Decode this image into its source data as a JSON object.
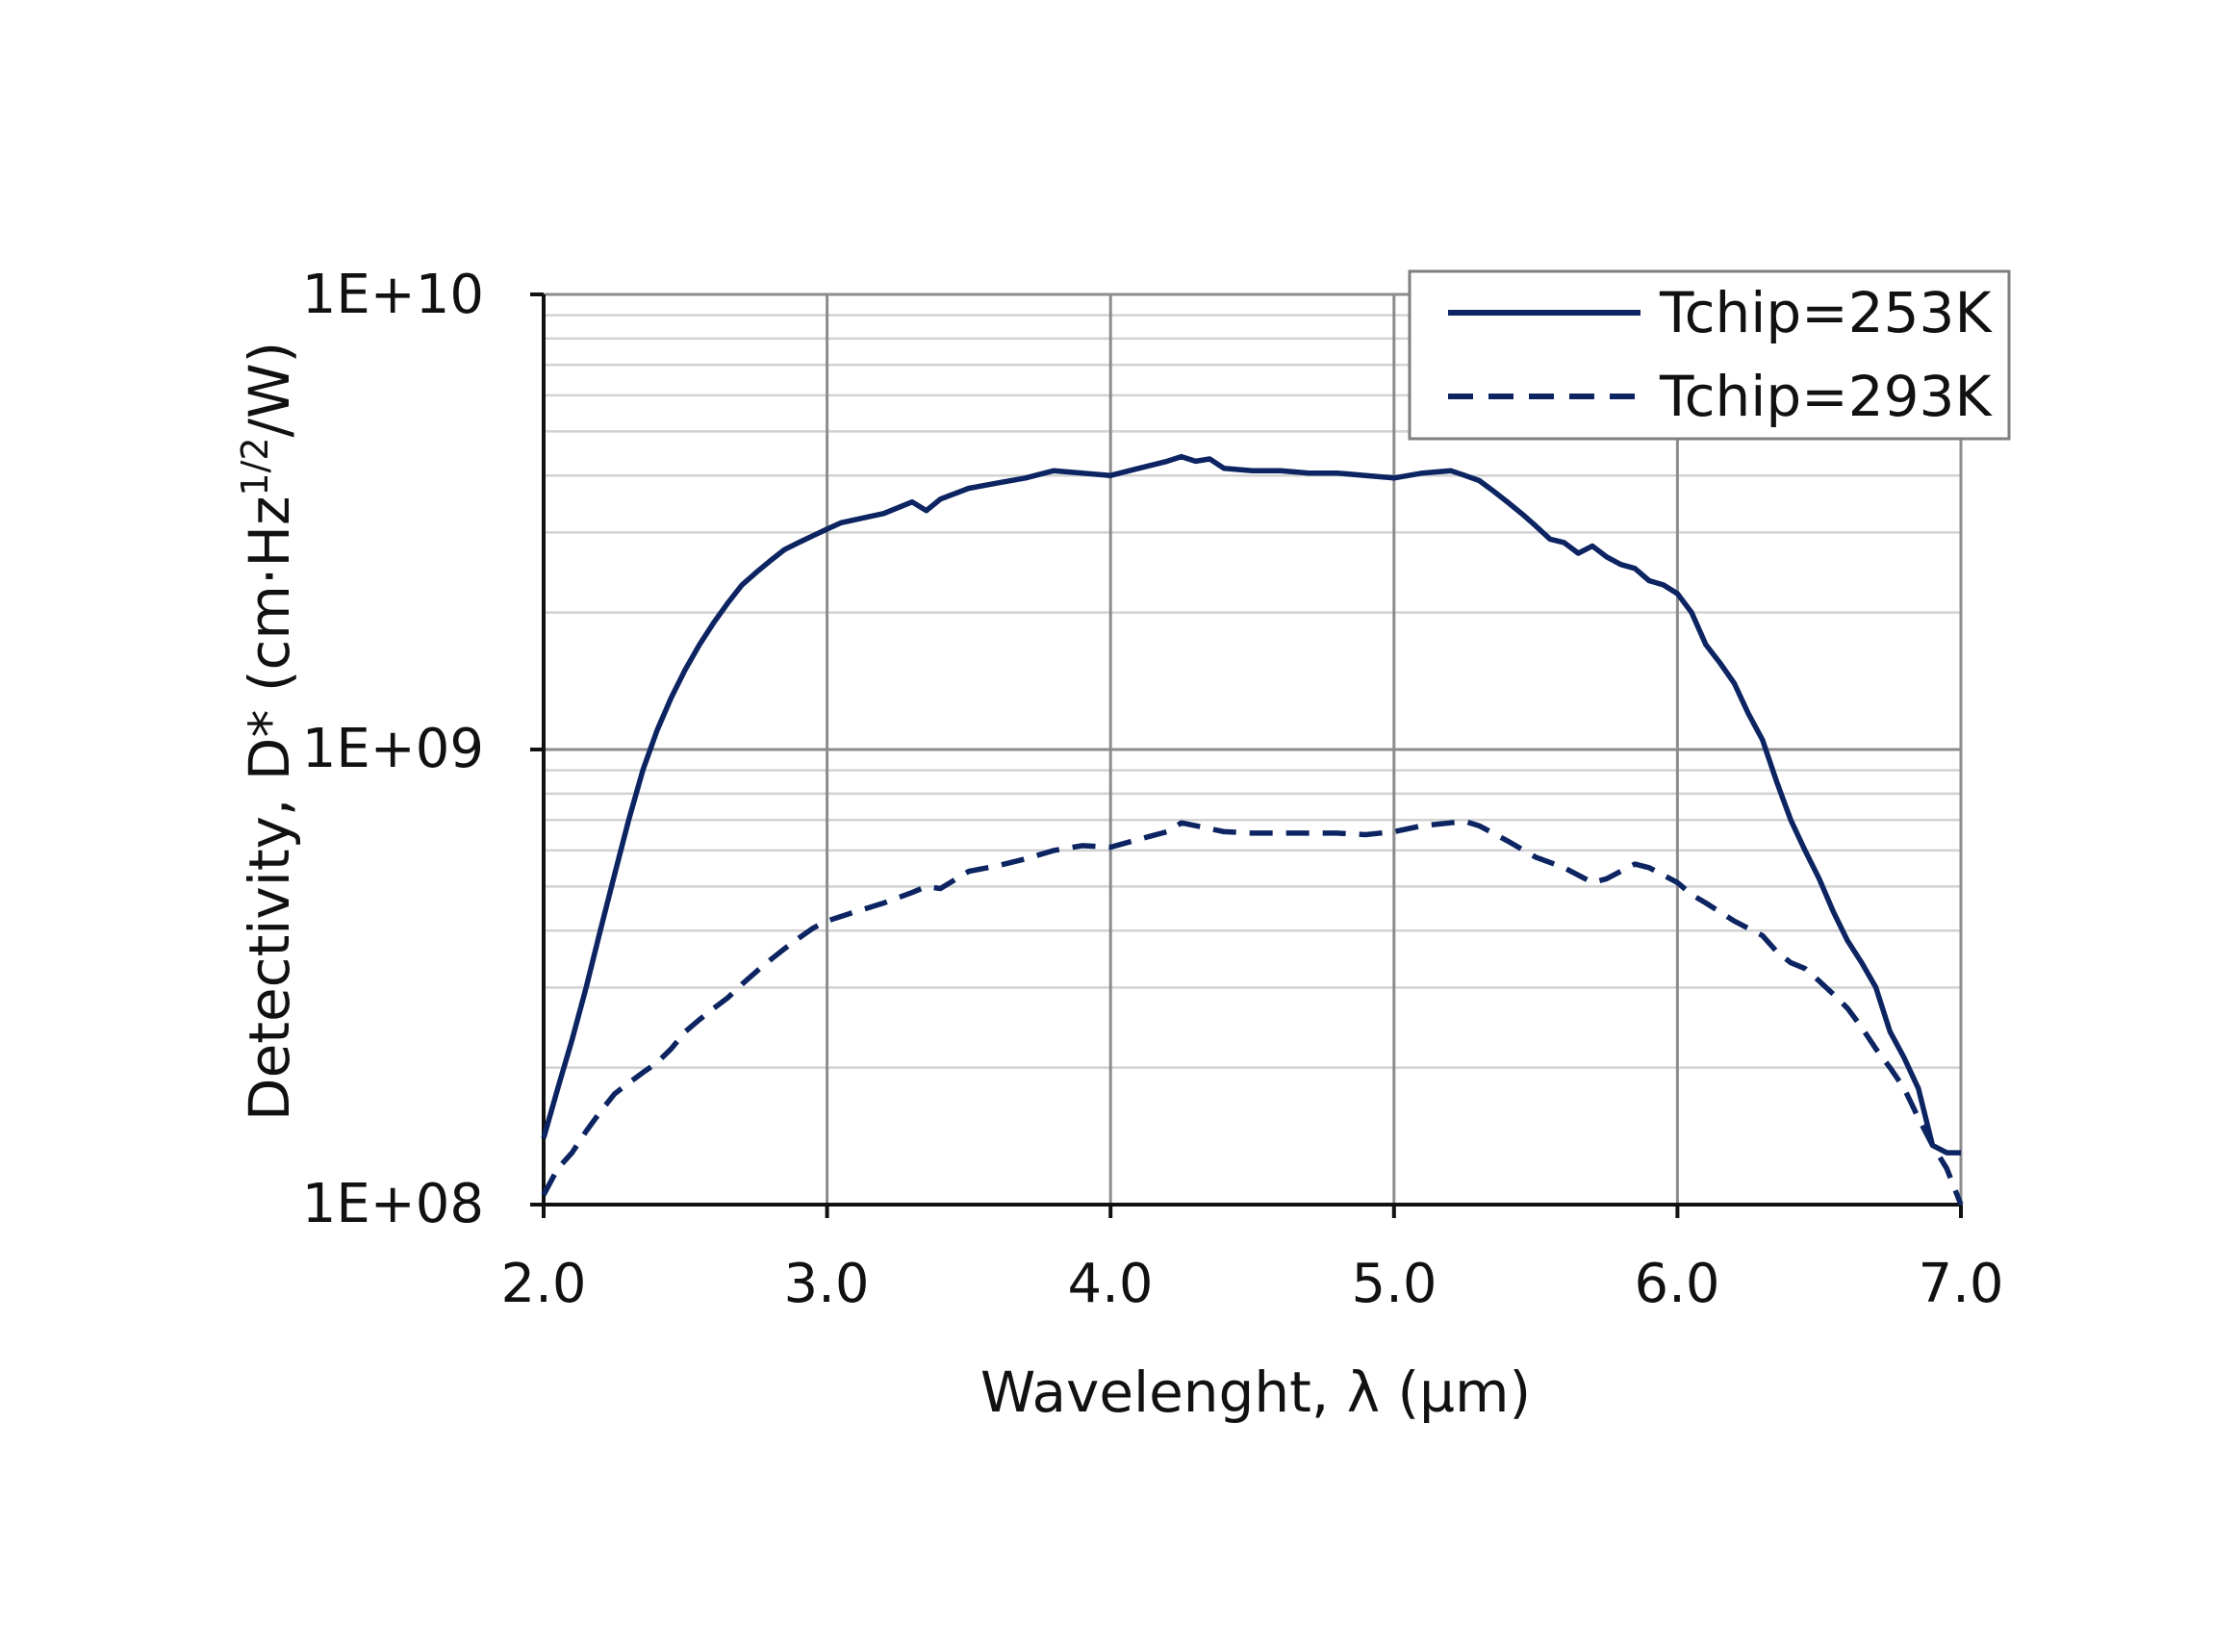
{
  "colors": {
    "series": "#0c2461",
    "major_grid": "#8c8c8c",
    "minor_grid": "#d2d2d2",
    "axis": "#111111",
    "legend_border": "#7f7f7f"
  },
  "chart_data": {
    "type": "line",
    "title": "",
    "xlabel": "Wavelenght, λ (µm)",
    "ylabel": "Detectivity, D* (cm·Hz",
    "ylabel_superscript": "1/2",
    "ylabel_suffix": "/W)",
    "xlim": [
      2.0,
      7.0
    ],
    "ylim": [
      100000000.0,
      10000000000.0
    ],
    "yscale": "log",
    "grid": true,
    "legend_position": "top-right",
    "x_ticks": [
      "2.0",
      "3.0",
      "4.0",
      "5.0",
      "6.0",
      "7.0"
    ],
    "y_ticks": [
      "1E+08",
      "1E+09",
      "1E+10"
    ],
    "series": [
      {
        "name": "Tchip=253K",
        "style": "solid",
        "x": [
          2.0,
          2.05,
          2.1,
          2.15,
          2.2,
          2.25,
          2.3,
          2.35,
          2.4,
          2.45,
          2.5,
          2.55,
          2.6,
          2.65,
          2.7,
          2.75,
          2.8,
          2.85,
          2.9,
          2.95,
          3.0,
          3.05,
          3.1,
          3.2,
          3.3,
          3.35,
          3.4,
          3.5,
          3.6,
          3.7,
          3.8,
          3.9,
          4.0,
          4.1,
          4.2,
          4.25,
          4.3,
          4.35,
          4.4,
          4.5,
          4.6,
          4.7,
          4.8,
          4.9,
          5.0,
          5.1,
          5.2,
          5.25,
          5.3,
          5.35,
          5.4,
          5.45,
          5.5,
          5.55,
          5.6,
          5.65,
          5.7,
          5.75,
          5.8,
          5.85,
          5.9,
          5.95,
          6.0,
          6.05,
          6.1,
          6.15,
          6.2,
          6.25,
          6.3,
          6.35,
          6.4,
          6.45,
          6.5,
          6.55,
          6.6,
          6.65,
          6.7,
          6.75,
          6.8,
          6.85,
          6.9,
          6.95,
          7.0
        ],
        "y": [
          140000000.0,
          180000000.0,
          230000000.0,
          300000000.0,
          400000000.0,
          530000000.0,
          700000000.0,
          900000000.0,
          1100000000.0,
          1300000000.0,
          1500000000.0,
          1700000000.0,
          1900000000.0,
          2100000000.0,
          2300000000.0,
          2450000000.0,
          2600000000.0,
          2750000000.0,
          2850000000.0,
          2950000000.0,
          3050000000.0,
          3150000000.0,
          3200000000.0,
          3300000000.0,
          3500000000.0,
          3350000000.0,
          3550000000.0,
          3750000000.0,
          3850000000.0,
          3950000000.0,
          4100000000.0,
          4050000000.0,
          4000000000.0,
          4150000000.0,
          4300000000.0,
          4400000000.0,
          4300000000.0,
          4350000000.0,
          4150000000.0,
          4100000000.0,
          4100000000.0,
          4050000000.0,
          4050000000.0,
          4000000000.0,
          3950000000.0,
          4050000000.0,
          4100000000.0,
          4000000000.0,
          3900000000.0,
          3700000000.0,
          3500000000.0,
          3300000000.0,
          3100000000.0,
          2900000000.0,
          2850000000.0,
          2700000000.0,
          2800000000.0,
          2650000000.0,
          2550000000.0,
          2500000000.0,
          2350000000.0,
          2300000000.0,
          2200000000.0,
          2000000000.0,
          1700000000.0,
          1550000000.0,
          1400000000.0,
          1200000000.0,
          1050000000.0,
          850000000.0,
          700000000.0,
          600000000.0,
          520000000.0,
          440000000.0,
          380000000.0,
          340000000.0,
          300000000.0,
          240000000.0,
          210000000.0,
          180000000.0,
          135000000.0,
          130000000.0,
          130000000.0
        ]
      },
      {
        "name": "Tchip=293K",
        "style": "dashed",
        "x": [
          2.0,
          2.05,
          2.1,
          2.15,
          2.2,
          2.25,
          2.3,
          2.35,
          2.4,
          2.45,
          2.5,
          2.55,
          2.6,
          2.65,
          2.7,
          2.75,
          2.8,
          2.85,
          2.9,
          2.95,
          3.0,
          3.1,
          3.2,
          3.3,
          3.35,
          3.4,
          3.5,
          3.6,
          3.7,
          3.8,
          3.9,
          4.0,
          4.1,
          4.2,
          4.25,
          4.3,
          4.4,
          4.5,
          4.6,
          4.7,
          4.8,
          4.9,
          5.0,
          5.1,
          5.2,
          5.25,
          5.3,
          5.4,
          5.5,
          5.6,
          5.7,
          5.75,
          5.8,
          5.85,
          5.9,
          5.95,
          6.0,
          6.05,
          6.1,
          6.2,
          6.3,
          6.35,
          6.4,
          6.45,
          6.5,
          6.55,
          6.6,
          6.65,
          6.7,
          6.75,
          6.8,
          6.85,
          6.9,
          6.95,
          7.0
        ],
        "y": [
          105000000.0,
          120000000.0,
          130000000.0,
          145000000.0,
          160000000.0,
          175000000.0,
          185000000.0,
          195000000.0,
          205000000.0,
          220000000.0,
          240000000.0,
          255000000.0,
          270000000.0,
          285000000.0,
          305000000.0,
          325000000.0,
          345000000.0,
          365000000.0,
          385000000.0,
          405000000.0,
          420000000.0,
          440000000.0,
          460000000.0,
          485000000.0,
          500000000.0,
          495000000.0,
          540000000.0,
          555000000.0,
          575000000.0,
          600000000.0,
          615000000.0,
          610000000.0,
          635000000.0,
          660000000.0,
          690000000.0,
          680000000.0,
          660000000.0,
          655000000.0,
          655000000.0,
          655000000.0,
          655000000.0,
          650000000.0,
          660000000.0,
          680000000.0,
          690000000.0,
          695000000.0,
          680000000.0,
          630000000.0,
          580000000.0,
          550000000.0,
          510000000.0,
          520000000.0,
          540000000.0,
          560000000.0,
          550000000.0,
          530000000.0,
          510000000.0,
          480000000.0,
          460000000.0,
          420000000.0,
          390000000.0,
          360000000.0,
          340000000.0,
          330000000.0,
          310000000.0,
          290000000.0,
          270000000.0,
          245000000.0,
          220000000.0,
          200000000.0,
          180000000.0,
          155000000.0,
          135000000.0,
          120000000.0,
          100000000.0
        ]
      }
    ]
  }
}
